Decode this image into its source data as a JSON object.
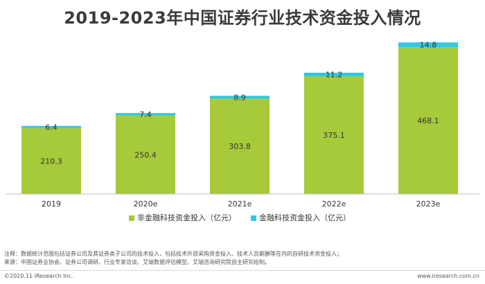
{
  "title": "2019-2023年中国证券行业技术资金投入情况",
  "colors": {
    "non_fintech": "#a6ca3a",
    "fintech": "#2ec8e4",
    "axis": "#bfbfbf",
    "label_dark": "#333333"
  },
  "chart_data": {
    "type": "bar",
    "stacked": true,
    "title": "2019-2023年中国证券行业技术资金投入情况",
    "categories": [
      "2019",
      "2020e",
      "2021e",
      "2022e",
      "2023e"
    ],
    "series": [
      {
        "name": "非金融科技资金投入（亿元）",
        "values": [
          210.3,
          250.4,
          303.8,
          375.1,
          468.1
        ],
        "color": "#a6ca3a"
      },
      {
        "name": "金融科技资金投入（亿元）",
        "values": [
          6.4,
          7.4,
          8.9,
          11.2,
          14.8
        ],
        "color": "#2ec8e4"
      }
    ],
    "ylim": [
      0,
      490
    ],
    "grid": false,
    "legend_position": "bottom"
  },
  "notes": {
    "line1": "注释：数据统计范围包括证券公司及其证券类子公司的技术投入，包括技术外部采购资金投入、技术人员薪酬等在内的自研技术资金投入；",
    "line2": "来源：中国证券业协会、证券公司调研、行业专家访谈、艾瑞数据评估模型、艾瑞咨询研究院自主研究绘制。"
  },
  "footer": {
    "copyright": "©2020.11 iResearch Inc.",
    "website": "www.iresearch.com.cn"
  }
}
